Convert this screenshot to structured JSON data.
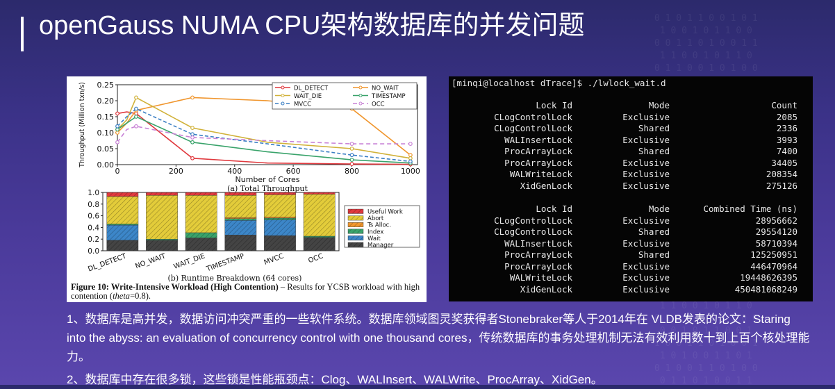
{
  "slide": {
    "title": "openGauss NUMA CPU架构数据库的并发问题"
  },
  "figure": {
    "chart_a": {
      "type": "line",
      "ylabel": "Throughput (Million txn/s)",
      "xlabel": "Number of Cores",
      "caption": "(a) Total Throughput",
      "x_ticks": [
        "0",
        "200",
        "400",
        "600",
        "800",
        "1000"
      ],
      "y_ticks": [
        "0.00",
        "0.05",
        "0.10",
        "0.15",
        "0.20",
        "0.25"
      ],
      "legend": [
        "DL_DETECT",
        "NO_WAIT",
        "WAIT_DIE",
        "TIMESTAMP",
        "MVCC",
        "OCC"
      ]
    },
    "chart_b": {
      "type": "bar",
      "caption": "(b) Runtime Breakdown (64 cores)",
      "categories": [
        "DL_DETECT",
        "NO_WAIT",
        "WAIT_DIE",
        "TIMESTAMP",
        "MVCC",
        "OCC"
      ],
      "y_ticks": [
        "0.0",
        "0.2",
        "0.4",
        "0.6",
        "0.8",
        "1.0"
      ],
      "legend": [
        "Useful Work",
        "Abort",
        "Ts Alloc.",
        "Index",
        "Wait",
        "Manager"
      ]
    },
    "caption_bold": "Figure 10: Write-Intensive Workload (High Contention)",
    "caption_rest": " – Results for YCSB workload with high contention (",
    "caption_theta": "theta",
    "caption_end": "=0.8)."
  },
  "chart_data": [
    {
      "type": "line",
      "title": "",
      "xlabel": "Number of Cores",
      "ylabel": "Throughput (Million txn/s)",
      "xlim": [
        0,
        1024
      ],
      "ylim": [
        0,
        0.25
      ],
      "x": [
        0,
        32,
        64,
        256,
        512,
        800,
        1000
      ],
      "series": [
        {
          "name": "DL_DETECT",
          "color": "#e0393e",
          "values": [
            0.16,
            0.165,
            0.16,
            0.02,
            0.005,
            0.002,
            0.001
          ]
        },
        {
          "name": "NO_WAIT",
          "color": "#f0962e",
          "values": [
            0.1,
            0.13,
            0.17,
            0.21,
            0.2,
            0.175,
            0.03
          ]
        },
        {
          "name": "WAIT_DIE",
          "color": "#d1b23a",
          "values": [
            0.11,
            0.14,
            0.21,
            0.115,
            0.07,
            0.05,
            0.02
          ]
        },
        {
          "name": "TIMESTAMP",
          "color": "#3aa36b",
          "values": [
            0.11,
            0.13,
            0.15,
            0.07,
            0.04,
            0.015,
            0.005
          ]
        },
        {
          "name": "MVCC",
          "color": "#3b7fc4",
          "values": [
            0.12,
            0.15,
            0.175,
            0.095,
            0.065,
            0.03,
            0.01
          ]
        },
        {
          "name": "OCC",
          "color": "#c882d6",
          "values": [
            0.07,
            0.11,
            0.12,
            0.085,
            0.075,
            0.065,
            0.065
          ]
        }
      ]
    },
    {
      "type": "bar",
      "title": "",
      "ylim": [
        0,
        1.0
      ],
      "categories": [
        "DL_DETECT",
        "NO_WAIT",
        "WAIT_DIE",
        "TIMESTAMP",
        "MVCC",
        "OCC"
      ],
      "series": [
        {
          "name": "Manager",
          "color": "#444444",
          "values": [
            0.18,
            0.18,
            0.22,
            0.27,
            0.26,
            0.23
          ]
        },
        {
          "name": "Wait",
          "color": "#3c86c8",
          "values": [
            0.26,
            0.0,
            0.0,
            0.25,
            0.27,
            0.0
          ]
        },
        {
          "name": "Index",
          "color": "#3aa36b",
          "values": [
            0.02,
            0.02,
            0.09,
            0.03,
            0.03,
            0.02
          ]
        },
        {
          "name": "Ts Alloc.",
          "color": "#f0962e",
          "values": [
            0.0,
            0.0,
            0.0,
            0.02,
            0.02,
            0.0
          ]
        },
        {
          "name": "Abort",
          "color": "#e3cc3a",
          "values": [
            0.47,
            0.75,
            0.64,
            0.38,
            0.38,
            0.72
          ]
        },
        {
          "name": "Useful Work",
          "color": "#e0393e",
          "values": [
            0.07,
            0.05,
            0.05,
            0.05,
            0.04,
            0.03
          ]
        }
      ]
    }
  ],
  "terminal": {
    "prompt": "[minqi@localhost dTrace]$ ./lwlock_wait.d",
    "table1": {
      "headers": [
        "Lock Id",
        "Mode",
        "Count"
      ],
      "rows": [
        [
          "CLogControlLock",
          "Exclusive",
          "2085"
        ],
        [
          "CLogControlLock",
          "Shared",
          "2336"
        ],
        [
          "WALInsertLock",
          "Exclusive",
          "3993"
        ],
        [
          "ProcArrayLock",
          "Shared",
          "7400"
        ],
        [
          "ProcArrayLock",
          "Exclusive",
          "34405"
        ],
        [
          "WALWriteLock",
          "Exclusive",
          "208354"
        ],
        [
          "XidGenLock",
          "Exclusive",
          "275126"
        ]
      ]
    },
    "table2": {
      "headers": [
        "Lock Id",
        "Mode",
        "Combined Time (ns)"
      ],
      "rows": [
        [
          "CLogControlLock",
          "Exclusive",
          "28956662"
        ],
        [
          "CLogControlLock",
          "Shared",
          "29554120"
        ],
        [
          "WALInsertLock",
          "Exclusive",
          "58710394"
        ],
        [
          "ProcArrayLock",
          "Shared",
          "125250951"
        ],
        [
          "ProcArrayLock",
          "Exclusive",
          "446470964"
        ],
        [
          "WALWriteLock",
          "Exclusive",
          "19448626395"
        ],
        [
          "XidGenLock",
          "Exclusive",
          "450481068249"
        ]
      ]
    }
  },
  "body": {
    "p1": "1、数据库是高并发，数据访问冲突严重的一些软件系统。数据库领域图灵奖获得者Stonebraker等人于2014年在 VLDB发表的论文：Staring into the abyss: an evaluation of concurrency control with one thousand cores，传统数据库的事务处理机制无法有效利用数十到上百个核处理能力。",
    "p2": "2、数据库中存在很多锁，这些锁是性能瓶颈点：Clog、WALInsert、WALWrite、ProcArray、XidGen。"
  }
}
